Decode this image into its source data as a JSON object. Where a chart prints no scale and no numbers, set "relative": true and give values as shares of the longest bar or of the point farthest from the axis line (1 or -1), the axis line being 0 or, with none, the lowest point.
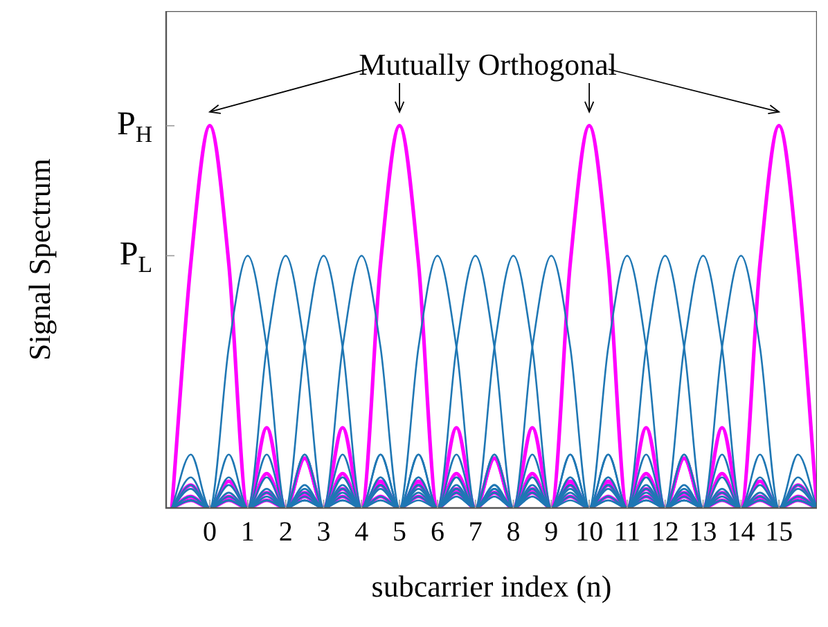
{
  "chart_data": {
    "type": "line",
    "xlabel": "subcarrier index (n)",
    "ylabel": "Signal Spectrum",
    "annotations": [
      "Mutually Orthogonal",
      "P$_{H}$",
      "P$_{L}$"
    ],
    "relative": true,
    "x": [
      -1,
      -0.5,
      0,
      0.5,
      1,
      1.5,
      2,
      2.5,
      3,
      3.5,
      4,
      4.5,
      5,
      5.5,
      6,
      6.5,
      7,
      7.5,
      8,
      8.5,
      9,
      9.5,
      10,
      10.5,
      11,
      11.5,
      12,
      12.5,
      13,
      13.5,
      14,
      14.5,
      15,
      15.5,
      16
    ],
    "xlim": [
      -1.15,
      16
    ],
    "xticks": [
      0,
      1,
      2,
      3,
      4,
      5,
      6,
      7,
      8,
      9,
      10,
      11,
      12,
      13,
      14,
      15
    ],
    "grid": false,
    "legend": false,
    "marker": "none",
    "line_style": "solid",
    "series": [
      {
        "color": "#1f77b4",
        "values": [
          0,
          0.14,
          0,
          0.42,
          0.66,
          0.42,
          0,
          0.14,
          0,
          0.08,
          0,
          0.06,
          0,
          0.05,
          0,
          0.04,
          0,
          0.03,
          0,
          0.03,
          0,
          0.02,
          0,
          0.02,
          0,
          0.02,
          0,
          0.02,
          0,
          0.02,
          0,
          0.02,
          0,
          0.02,
          0
        ]
      },
      {
        "color": "#1f77b4",
        "values": [
          0,
          0.08,
          0,
          0.14,
          0,
          0.42,
          0.66,
          0.42,
          0,
          0.14,
          0,
          0.08,
          0,
          0.06,
          0,
          0.05,
          0,
          0.04,
          0,
          0.03,
          0,
          0.03,
          0,
          0.02,
          0,
          0.02,
          0,
          0.02,
          0,
          0.02,
          0,
          0.02,
          0,
          0.02,
          0
        ]
      },
      {
        "color": "#1f77b4",
        "values": [
          0,
          0.06,
          0,
          0.08,
          0,
          0.14,
          0,
          0.42,
          0.66,
          0.42,
          0,
          0.14,
          0,
          0.08,
          0,
          0.06,
          0,
          0.05,
          0,
          0.04,
          0,
          0.03,
          0,
          0.03,
          0,
          0.02,
          0,
          0.02,
          0,
          0.02,
          0,
          0.02,
          0,
          0.02,
          0
        ]
      },
      {
        "color": "#1f77b4",
        "values": [
          0,
          0.05,
          0,
          0.06,
          0,
          0.08,
          0,
          0.14,
          0,
          0.42,
          0.66,
          0.42,
          0,
          0.14,
          0,
          0.08,
          0,
          0.06,
          0,
          0.05,
          0,
          0.04,
          0,
          0.03,
          0,
          0.03,
          0,
          0.02,
          0,
          0.02,
          0,
          0.02,
          0,
          0.02,
          0
        ]
      },
      {
        "color": "#1f77b4",
        "values": [
          0,
          0.03,
          0,
          0.04,
          0,
          0.05,
          0,
          0.06,
          0,
          0.08,
          0,
          0.14,
          0,
          0.42,
          0.66,
          0.42,
          0,
          0.14,
          0,
          0.08,
          0,
          0.06,
          0,
          0.05,
          0,
          0.04,
          0,
          0.03,
          0,
          0.03,
          0,
          0.02,
          0,
          0.02,
          0
        ]
      },
      {
        "color": "#1f77b4",
        "values": [
          0,
          0.03,
          0,
          0.03,
          0,
          0.04,
          0,
          0.05,
          0,
          0.06,
          0,
          0.08,
          0,
          0.14,
          0,
          0.42,
          0.66,
          0.42,
          0,
          0.14,
          0,
          0.08,
          0,
          0.06,
          0,
          0.05,
          0,
          0.04,
          0,
          0.03,
          0,
          0.03,
          0,
          0.02,
          0
        ]
      },
      {
        "color": "#1f77b4",
        "values": [
          0,
          0.02,
          0,
          0.03,
          0,
          0.03,
          0,
          0.04,
          0,
          0.05,
          0,
          0.06,
          0,
          0.08,
          0,
          0.14,
          0,
          0.42,
          0.66,
          0.42,
          0,
          0.14,
          0,
          0.08,
          0,
          0.06,
          0,
          0.05,
          0,
          0.04,
          0,
          0.03,
          0,
          0.03,
          0
        ]
      },
      {
        "color": "#1f77b4",
        "values": [
          0,
          0.02,
          0,
          0.02,
          0,
          0.03,
          0,
          0.03,
          0,
          0.04,
          0,
          0.05,
          0,
          0.06,
          0,
          0.08,
          0,
          0.14,
          0,
          0.42,
          0.66,
          0.42,
          0,
          0.14,
          0,
          0.08,
          0,
          0.06,
          0,
          0.05,
          0,
          0.04,
          0,
          0.03,
          0
        ]
      },
      {
        "color": "#1f77b4",
        "values": [
          0,
          0.02,
          0,
          0.02,
          0,
          0.02,
          0,
          0.02,
          0,
          0.03,
          0,
          0.03,
          0,
          0.04,
          0,
          0.05,
          0,
          0.06,
          0,
          0.08,
          0,
          0.14,
          0,
          0.42,
          0.66,
          0.42,
          0,
          0.14,
          0,
          0.08,
          0,
          0.06,
          0,
          0.05,
          0
        ]
      },
      {
        "color": "#1f77b4",
        "values": [
          0,
          0.02,
          0,
          0.02,
          0,
          0.02,
          0,
          0.02,
          0,
          0.02,
          0,
          0.03,
          0,
          0.03,
          0,
          0.04,
          0,
          0.05,
          0,
          0.06,
          0,
          0.08,
          0,
          0.14,
          0,
          0.42,
          0.66,
          0.42,
          0,
          0.14,
          0,
          0.08,
          0,
          0.06,
          0
        ]
      },
      {
        "color": "#1f77b4",
        "values": [
          0,
          0.02,
          0,
          0.02,
          0,
          0.02,
          0,
          0.02,
          0,
          0.02,
          0,
          0.02,
          0,
          0.03,
          0,
          0.03,
          0,
          0.04,
          0,
          0.05,
          0,
          0.06,
          0,
          0.08,
          0,
          0.14,
          0,
          0.42,
          0.66,
          0.42,
          0,
          0.14,
          0,
          0.08,
          0
        ]
      },
      {
        "color": "#1f77b4",
        "values": [
          0,
          0.02,
          0,
          0.02,
          0,
          0.02,
          0,
          0.02,
          0,
          0.02,
          0,
          0.02,
          0,
          0.02,
          0,
          0.03,
          0,
          0.03,
          0,
          0.04,
          0,
          0.05,
          0,
          0.06,
          0,
          0.08,
          0,
          0.14,
          0,
          0.42,
          0.66,
          0.42,
          0,
          0.14,
          0
        ]
      },
      {
        "color": "#ff00ff",
        "values": [
          0,
          0.64,
          1,
          0.64,
          0,
          0.21,
          0,
          0.13,
          0,
          0.09,
          0,
          0.07,
          0,
          0.06,
          0,
          0.05,
          0,
          0.04,
          0,
          0.04,
          0,
          0.03,
          0,
          0.03,
          0,
          0.03,
          0,
          0.03,
          0,
          0.02,
          0,
          0.02,
          0,
          0.02,
          0
        ]
      },
      {
        "color": "#ff00ff",
        "values": [
          0,
          0.06,
          0,
          0.07,
          0,
          0.09,
          0,
          0.13,
          0,
          0.21,
          0,
          0.64,
          1,
          0.64,
          0,
          0.21,
          0,
          0.13,
          0,
          0.09,
          0,
          0.07,
          0,
          0.06,
          0,
          0.05,
          0,
          0.04,
          0,
          0.04,
          0,
          0.03,
          0,
          0.03,
          0
        ]
      },
      {
        "color": "#ff00ff",
        "values": [
          0,
          0.03,
          0,
          0.03,
          0,
          0.04,
          0,
          0.04,
          0,
          0.05,
          0,
          0.06,
          0,
          0.07,
          0,
          0.09,
          0,
          0.13,
          0,
          0.21,
          0,
          0.64,
          1,
          0.64,
          0,
          0.21,
          0,
          0.13,
          0,
          0.09,
          0,
          0.07,
          0,
          0.06,
          0
        ]
      },
      {
        "color": "#ff00ff",
        "values": [
          0,
          0.02,
          0,
          0.02,
          0,
          0.02,
          0,
          0.03,
          0,
          0.03,
          0,
          0.03,
          0,
          0.03,
          0,
          0.04,
          0,
          0.04,
          0,
          0.05,
          0,
          0.06,
          0,
          0.07,
          0,
          0.09,
          0,
          0.13,
          0,
          0.21,
          0,
          0.64,
          1,
          0.64,
          0
        ]
      }
    ]
  }
}
